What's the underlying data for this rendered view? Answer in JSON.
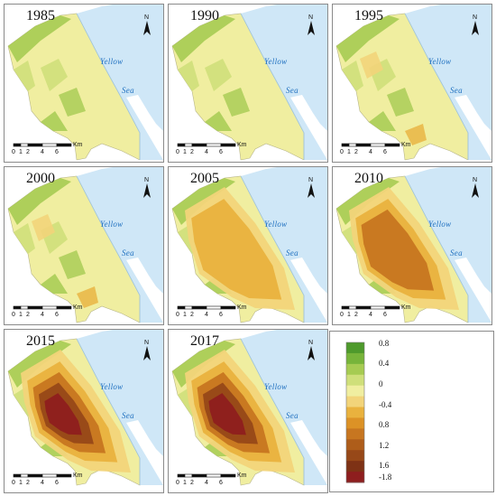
{
  "panels": [
    {
      "year": "1985",
      "sea": [
        "Yellow",
        "Sea"
      ],
      "scalebar": {
        "ticks": [
          "0",
          "1",
          "2",
          "4",
          "6"
        ],
        "unit": "Km"
      },
      "north": "N",
      "intensity": 0.05
    },
    {
      "year": "1990",
      "sea": [
        "Yellow",
        "Sea"
      ],
      "scalebar": {
        "ticks": [
          "0",
          "1",
          "2",
          "4",
          "6"
        ],
        "unit": "Km"
      },
      "north": "N",
      "intensity": 0.0
    },
    {
      "year": "1995",
      "sea": [
        "Yellow",
        "Sea"
      ],
      "scalebar": {
        "ticks": [
          "0",
          "1",
          "2",
          "4",
          "6"
        ],
        "unit": "Km"
      },
      "north": "N",
      "intensity": 0.15
    },
    {
      "year": "2000",
      "sea": [
        "Yellow",
        "Sea"
      ],
      "scalebar": {
        "ticks": [
          "0",
          "1",
          "2",
          "4",
          "6"
        ],
        "unit": "Km"
      },
      "north": "N",
      "intensity": 0.2
    },
    {
      "year": "2005",
      "sea": [
        "Yellow",
        "Sea"
      ],
      "scalebar": {
        "ticks": [
          "0",
          "1",
          "2",
          "4",
          "6"
        ],
        "unit": "Km"
      },
      "north": "N",
      "intensity": 0.6
    },
    {
      "year": "2010",
      "sea": [
        "Yellow",
        "Sea"
      ],
      "scalebar": {
        "ticks": [
          "0",
          "1",
          "2",
          "4",
          "6"
        ],
        "unit": "Km"
      },
      "north": "N",
      "intensity": 0.7
    },
    {
      "year": "2015",
      "sea": [
        "Yellow",
        "Sea"
      ],
      "scalebar": {
        "ticks": [
          "0",
          "1",
          "2",
          "4",
          "6"
        ],
        "unit": "Km"
      },
      "north": "N",
      "intensity": 0.9
    },
    {
      "year": "2017",
      "sea": [
        "Yellow",
        "Sea"
      ],
      "scalebar": {
        "ticks": [
          "0",
          "1",
          "2",
          "4",
          "6"
        ],
        "unit": "Km"
      },
      "north": "N",
      "intensity": 0.85
    }
  ],
  "legend": {
    "labels": [
      "0.8",
      "0.4",
      "0",
      "-0.4",
      "0.8",
      "1.2",
      "1.6",
      "-1.8"
    ],
    "colors": [
      "#4e9a2c",
      "#77b43a",
      "#a6cb52",
      "#cfdf7a",
      "#f0eea0",
      "#f2d47a",
      "#e9b23e",
      "#dc9226",
      "#c77620",
      "#ae5d1a",
      "#974818",
      "#7e3215",
      "#8e1e1e"
    ]
  },
  "colors": {
    "sea": "#cfe7f7",
    "land_neutral": "#f0eea0",
    "green_light": "#cfdf7a",
    "green_mid": "#a6cb52",
    "green_dark": "#6aa83a",
    "orange_light": "#f2d47a",
    "orange_mid": "#e9b23e",
    "orange_dark": "#c77620",
    "brown": "#974818",
    "red_dark": "#8e1e1e",
    "sea_label": "#1e6fbf"
  }
}
